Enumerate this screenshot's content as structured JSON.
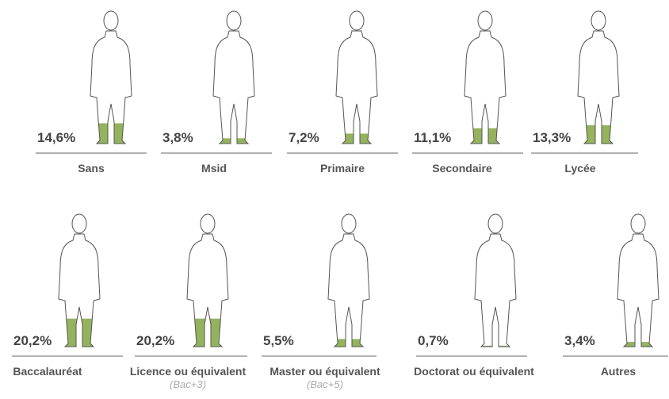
{
  "chart_data": {
    "type": "pictogram",
    "categories": [
      "Sans",
      "Msid",
      "Primaire",
      "Secondaire",
      "Lycée",
      "Baccalauréat",
      "Licence ou équivalent",
      "Master ou équivalent",
      "Doctorat ou équivalent",
      "Autres"
    ],
    "notes": [
      null,
      null,
      null,
      null,
      null,
      null,
      "(Bac+3)",
      "(Bac+5)",
      null,
      null
    ],
    "values": [
      14.6,
      3.8,
      7.2,
      11.1,
      13.3,
      20.2,
      20.2,
      5.5,
      0.7,
      3.4
    ],
    "value_labels": [
      "14,6%",
      "3,8%",
      "7,2%",
      "11,1%",
      "13,3%",
      "20,2%",
      "20,2%",
      "5,5%",
      "0,7%",
      "3,4%"
    ],
    "color": "#94b35c"
  }
}
